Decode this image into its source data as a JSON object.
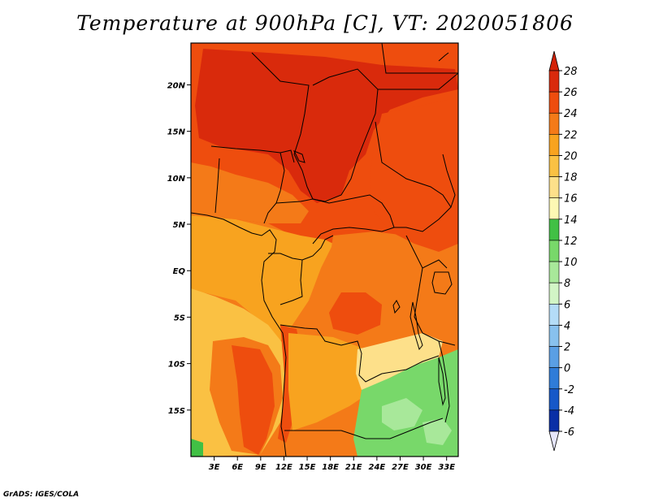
{
  "title": "Temperature at 900hPa [C], VT: 2020051806",
  "credit": "GrADS: IGES/COLA",
  "map": {
    "lon_range": [
      0,
      34.5
    ],
    "lat_range": [
      -20,
      24.5
    ],
    "x_ticks": [
      {
        "lon": 3,
        "label": "3E"
      },
      {
        "lon": 6,
        "label": "6E"
      },
      {
        "lon": 9,
        "label": "9E"
      },
      {
        "lon": 12,
        "label": "12E"
      },
      {
        "lon": 15,
        "label": "15E"
      },
      {
        "lon": 18,
        "label": "18E"
      },
      {
        "lon": 21,
        "label": "21E"
      },
      {
        "lon": 24,
        "label": "24E"
      },
      {
        "lon": 27,
        "label": "27E"
      },
      {
        "lon": 30,
        "label": "30E"
      },
      {
        "lon": 33,
        "label": "33E"
      }
    ],
    "y_ticks": [
      {
        "lat": 20,
        "label": "20N"
      },
      {
        "lat": 15,
        "label": "15N"
      },
      {
        "lat": 10,
        "label": "10N"
      },
      {
        "lat": 5,
        "label": "5N"
      },
      {
        "lat": 0,
        "label": "EQ"
      },
      {
        "lat": -5,
        "label": "5S"
      },
      {
        "lat": -10,
        "label": "10S"
      },
      {
        "lat": -15,
        "label": "15S"
      }
    ]
  },
  "colorbar": {
    "levels": [
      {
        "label": "28"
      },
      {
        "label": "26"
      },
      {
        "label": "24"
      },
      {
        "label": "22"
      },
      {
        "label": "20"
      },
      {
        "label": "18"
      },
      {
        "label": "16"
      },
      {
        "label": "14"
      },
      {
        "label": "12"
      },
      {
        "label": "10"
      },
      {
        "label": "8"
      },
      {
        "label": "6"
      },
      {
        "label": "4"
      },
      {
        "label": "2"
      },
      {
        "label": "0"
      },
      {
        "label": "-2"
      },
      {
        "label": "-4"
      },
      {
        "label": "-6"
      }
    ],
    "colors": [
      "#d92a0c",
      "#ee4d0e",
      "#f47a18",
      "#f8a31f",
      "#fac143",
      "#fde08a",
      "#fdf8b4",
      "#41c045",
      "#78d86a",
      "#a8e89a",
      "#d2f5c6",
      "#b4dcf7",
      "#88c1ee",
      "#5a9fe4",
      "#2f7cd8",
      "#1658c8",
      "#0a2fa6",
      "#0a0a78",
      "#e6e6fa"
    ],
    "top_color": "#d42208",
    "bottom_color": "#e6e6fa"
  },
  "palette": {
    "t27": "#d92a0c",
    "t25": "#ee4d0e",
    "t23": "#f47a18",
    "t21": "#f8a31f",
    "t19": "#fac143",
    "t17": "#fde08a",
    "t15": "#41c045",
    "t13": "#78d86a",
    "t11": "#a8e89a"
  }
}
